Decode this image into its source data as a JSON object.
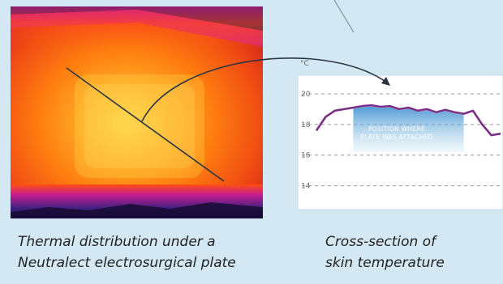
{
  "thermal_image": {
    "caption_line1": "Thermal distribution under a",
    "caption_line2": "Neutralect electrosurgical plate"
  },
  "chart": {
    "unit": "°C",
    "ticks": [
      "20",
      "18",
      "16",
      "14"
    ],
    "annotation_line1": "POSITION WHERE",
    "annotation_line2": "PLATE WAS ATTACHED",
    "caption_line1": "Cross-section of",
    "caption_line2": "skin temperature",
    "curve_color": "#7a2e86",
    "shade_color": "#3d8fcf"
  },
  "chart_data": {
    "type": "line",
    "ylabel": "°C",
    "ylim": [
      12.5,
      21
    ],
    "yticks": [
      20,
      18,
      16,
      14
    ],
    "grid": true,
    "series": [
      {
        "x": [
          0,
          0.05,
          0.1,
          0.15,
          0.2,
          0.25,
          0.3,
          0.35,
          0.4,
          0.45,
          0.5,
          0.55,
          0.6,
          0.65,
          0.7,
          0.75,
          0.8,
          0.85,
          0.9,
          0.95,
          1.0
        ],
        "values": [
          17.6,
          18.5,
          18.9,
          19.0,
          19.1,
          19.2,
          19.25,
          19.15,
          19.2,
          19.0,
          19.1,
          18.9,
          19.0,
          18.8,
          18.95,
          18.8,
          18.7,
          18.9,
          18.0,
          17.3,
          17.4
        ]
      }
    ]
  }
}
